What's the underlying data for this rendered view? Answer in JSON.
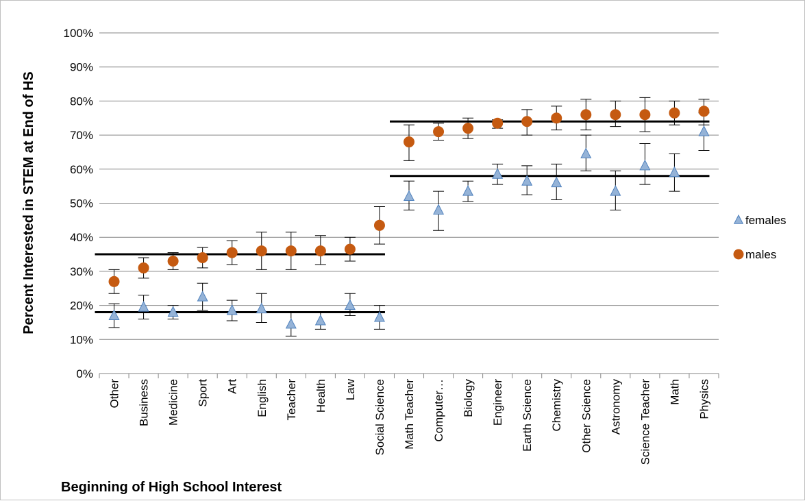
{
  "chart_data": {
    "type": "scatter",
    "xlabel": "Beginning of High School Interest",
    "ylabel": "Percent Interested in STEM at End of HS",
    "ylim": [
      0,
      100
    ],
    "yticks": [
      "0%",
      "10%",
      "20%",
      "30%",
      "40%",
      "50%",
      "60%",
      "70%",
      "80%",
      "90%",
      "100%"
    ],
    "grid": "horizontal",
    "legend_position": "right",
    "categories": [
      "Other",
      "Business",
      "Medicine",
      "Sport",
      "Art",
      "English",
      "Teacher",
      "Health",
      "Law",
      "Social Science",
      "Math Teacher",
      "Computer…",
      "Biology",
      "Engineer",
      "Earth Science",
      "Chemistry",
      "Other Science",
      "Astronomy",
      "Science Teacher",
      "Math",
      "Physics"
    ],
    "series": [
      {
        "name": "females",
        "marker": "triangle",
        "color": "#95b3d7",
        "edge_color": "#4f81bd",
        "values": [
          17,
          19.5,
          18,
          22.5,
          18.5,
          19,
          14.5,
          15.5,
          20,
          16.5,
          52,
          48,
          53.5,
          58.5,
          56.5,
          56,
          64.5,
          53.5,
          61,
          59,
          71
        ],
        "err_low": [
          13.5,
          16,
          16,
          18.5,
          15.5,
          15,
          11,
          13,
          17,
          13,
          48,
          42,
          50.5,
          55.5,
          52.5,
          51,
          59.5,
          48,
          55.5,
          53.5,
          65.5
        ],
        "err_high": [
          20.5,
          23,
          20,
          26.5,
          21.5,
          23.5,
          18,
          18,
          23.5,
          20,
          56.5,
          53.5,
          56.5,
          61.5,
          61,
          61.5,
          70,
          59.5,
          67.5,
          64.5,
          76.5
        ]
      },
      {
        "name": "males",
        "marker": "circle",
        "color": "#c55a11",
        "edge_color": "#c55a11",
        "values": [
          27,
          31,
          33,
          34,
          35.5,
          36,
          36,
          36,
          36.5,
          43.5,
          68,
          71,
          72,
          73.5,
          74,
          75,
          76,
          76,
          76,
          76.5,
          77
        ],
        "err_low": [
          23.5,
          28,
          30.5,
          31,
          32,
          30.5,
          30.5,
          32,
          33,
          38,
          62.5,
          68.5,
          69,
          72,
          70,
          71.5,
          71.5,
          72.5,
          71,
          73,
          73
        ],
        "err_high": [
          30.5,
          34,
          35.5,
          37,
          39,
          41.5,
          41.5,
          40.5,
          40,
          49,
          73,
          73.5,
          75,
          74.5,
          77.5,
          78.5,
          80.5,
          80,
          81,
          80,
          80.5
        ]
      }
    ],
    "reference_lines": [
      {
        "from": "Other",
        "to": "Social Science",
        "value": 35
      },
      {
        "from": "Other",
        "to": "Social Science",
        "value": 18
      },
      {
        "from": "Math Teacher",
        "to": "Physics",
        "value": 74
      },
      {
        "from": "Math Teacher",
        "to": "Physics",
        "value": 58
      }
    ]
  }
}
